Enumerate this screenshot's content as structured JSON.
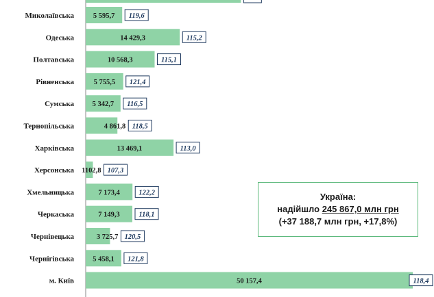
{
  "chart_data": {
    "type": "bar",
    "orientation": "horizontal",
    "categories": [
      "Миколаївська",
      "Одеська",
      "Полтавська",
      "Рівненська",
      "Сумська",
      "Тернопільська",
      "Харківська",
      "Херсонська",
      "Хмельницька",
      "Черкаська",
      "Чернівецька",
      "Чернігівська",
      "м. Київ"
    ],
    "values": [
      5595.7,
      14429.3,
      10568.3,
      5755.5,
      5342.7,
      4861.8,
      13469.1,
      1102.8,
      7173.4,
      7149.3,
      3725.7,
      5458.1,
      50157.4
    ],
    "value_labels": [
      "5 595,7",
      "14 429,3",
      "10 568,3",
      "5 755,5",
      "5 342,7",
      "4 861,8",
      "13 469,1",
      "1102,8",
      "7 173,4",
      "7 149,3",
      "3 725,7",
      "5 458,1",
      "50 157,4"
    ],
    "index_labels": [
      "119,6",
      "115,2",
      "115,1",
      "121,4",
      "116,5",
      "118,5",
      "113,0",
      "107,3",
      "122,2",
      "118,1",
      "120,5",
      "121,8",
      "118,4"
    ],
    "partial_top_bar_value": 23800,
    "xlim": [
      0,
      50157.4
    ],
    "colors": {
      "bar": "#8fd3a6",
      "index_border": "#1f3a5f",
      "summary_border": "#5ab87a"
    },
    "grid": false,
    "legend": "none"
  },
  "summary": {
    "line1": "Україна:",
    "line2_prefix": "надійшло ",
    "line2_amount": "245 867,0 млн грн",
    "line3": "(+37 188,7 млн грн, +17,8%)"
  }
}
